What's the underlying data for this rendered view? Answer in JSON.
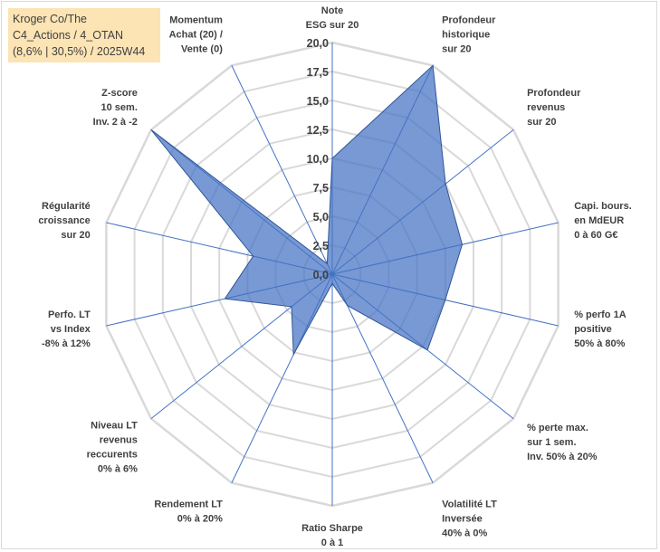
{
  "chart_data": {
    "type": "radar",
    "title_lines": [
      "Kroger Co/The",
      "C4_Actions / 4_OTAN",
      "(8,6% | 30,5%) / 2025W44"
    ],
    "rmax": 20,
    "tick_step": 2.5,
    "tick_labels": [
      "0,0",
      "2,5",
      "5,0",
      "7,5",
      "10,0",
      "12,5",
      "15,0",
      "17,5",
      "20,0"
    ],
    "axes": [
      {
        "label": [
          "Note",
          "ESG sur 20"
        ],
        "value": 10.0
      },
      {
        "label": [
          "Profondeur",
          "historique",
          "sur 20"
        ],
        "value": 20.0
      },
      {
        "label": [
          "Profondeur",
          "revenus",
          "sur 20"
        ],
        "value": 12.5
      },
      {
        "label": [
          "Capi. bours.",
          "en MdEUR",
          "0 à 60 G€"
        ],
        "value": 11.5
      },
      {
        "label": [
          "% perfo 1A",
          "positive",
          "50% à 80%"
        ],
        "value": 10.0
      },
      {
        "label": [
          "% perte max.",
          "sur 1 sem.",
          "Inv. 50% à 20%"
        ],
        "value": 10.5
      },
      {
        "label": [
          "Volatilité LT",
          "Inversée",
          "40% à 0%"
        ],
        "value": 3.0
      },
      {
        "label": [
          "Ratio Sharpe",
          "0 à 1"
        ],
        "value": 0.8
      },
      {
        "label": [
          "Rendement LT",
          "0% à 20%"
        ],
        "value": 7.7
      },
      {
        "label": [
          "Niveau LT",
          "revenus",
          "reccurents",
          "0% à 6%"
        ],
        "value": 4.5
      },
      {
        "label": [
          "Perfo. LT",
          "vs Index",
          "-8% à 12%"
        ],
        "value": 9.5
      },
      {
        "label": [
          "Régularité",
          "croissance",
          "sur 20"
        ],
        "value": 7.0
      },
      {
        "label": [
          "Z-score",
          "10 sem.",
          "Inv. 2 à -2"
        ],
        "value": 20.0
      },
      {
        "label": [
          "Momentum",
          "Achat (20) /",
          "Vente (0)"
        ],
        "value": 1.0
      }
    ],
    "series": [
      {
        "name": "Kroger Co/The",
        "color": "#4472c4"
      }
    ],
    "grid_color": "#d9d9d9",
    "spoke_color": "#4472c4"
  }
}
